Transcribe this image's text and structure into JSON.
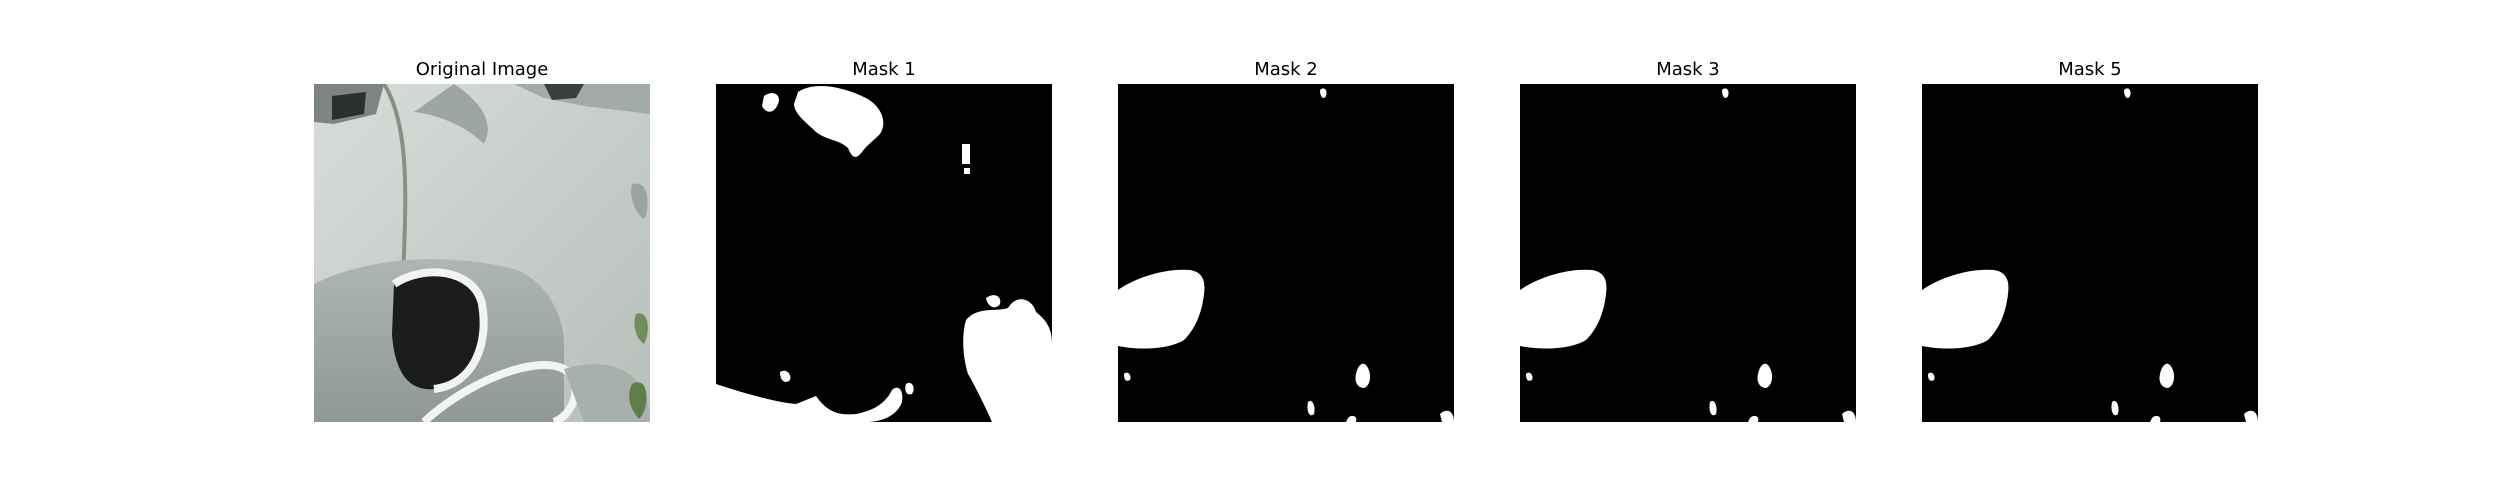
{
  "panels": [
    {
      "title": "Original Image",
      "content": "photo"
    },
    {
      "title": "Mask 1",
      "content": "binary-mask"
    },
    {
      "title": "Mask 2",
      "content": "binary-mask"
    },
    {
      "title": "Mask 3",
      "content": "binary-mask"
    },
    {
      "title": "Mask 5",
      "content": "binary-mask"
    }
  ],
  "colors": {
    "background": "#ffffff",
    "mask_background": "#000000",
    "mask_foreground": "#ffffff",
    "photo_base": "#c9cfcb",
    "photo_dark": "#1a1d1c",
    "photo_leaf": "#6f8f5a"
  }
}
